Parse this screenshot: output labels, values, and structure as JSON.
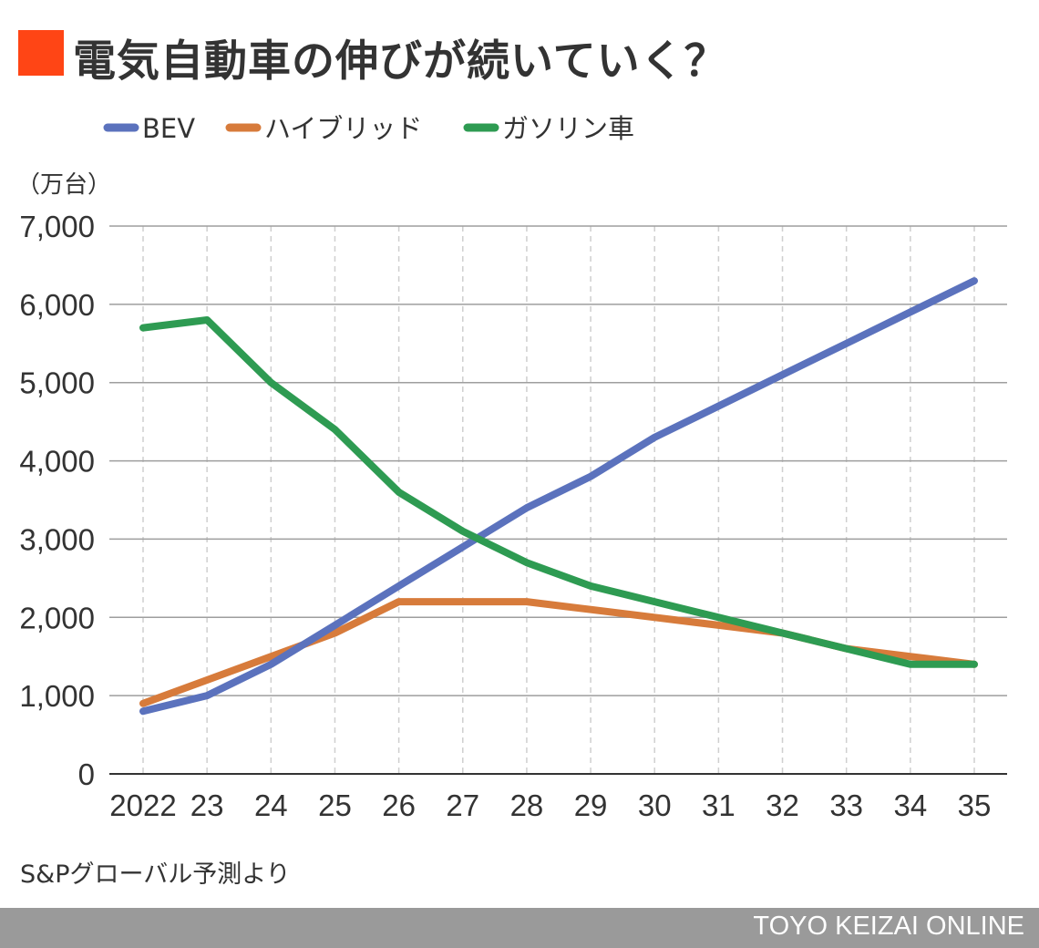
{
  "header": {
    "title": "電気自動車の伸びが続いていく？",
    "accent_color": "#ff4515"
  },
  "chart_data": {
    "type": "line",
    "title": "電気自動車の伸びが続いていく？",
    "unit_label": "（万台）",
    "categories": [
      "2022",
      "23",
      "24",
      "25",
      "26",
      "27",
      "28",
      "29",
      "30",
      "31",
      "32",
      "33",
      "34",
      "35"
    ],
    "ylim": [
      0,
      7000
    ],
    "yticks": [
      0,
      1000,
      2000,
      3000,
      4000,
      5000,
      6000,
      7000
    ],
    "ytick_labels": [
      "0",
      "1,000",
      "2,000",
      "3,000",
      "4,000",
      "5,000",
      "6,000",
      "7,000"
    ],
    "grid": {
      "horizontal": true,
      "vertical_dashed": true
    },
    "legend_position": "top-left",
    "series": [
      {
        "name": "BEV",
        "color": "#5b72bd",
        "values": [
          800,
          1000,
          1400,
          1900,
          2400,
          2900,
          3400,
          3800,
          4300,
          4700,
          5100,
          5500,
          5900,
          6300
        ]
      },
      {
        "name": "ハイブリッド",
        "color": "#d77b3b",
        "values": [
          900,
          1200,
          1500,
          1800,
          2200,
          2200,
          2200,
          2100,
          2000,
          1900,
          1800,
          1600,
          1500,
          1400
        ]
      },
      {
        "name": "ガソリン車",
        "color": "#2e9b52",
        "values": [
          5700,
          5800,
          5000,
          4400,
          3600,
          3100,
          2700,
          2400,
          2200,
          2000,
          1800,
          1600,
          1400,
          1400
        ]
      }
    ]
  },
  "source": "S&Pグローバル予測より",
  "footer": {
    "text": "TOYO KEIZAI ONLINE",
    "bar_color": "#9a9a9a"
  }
}
